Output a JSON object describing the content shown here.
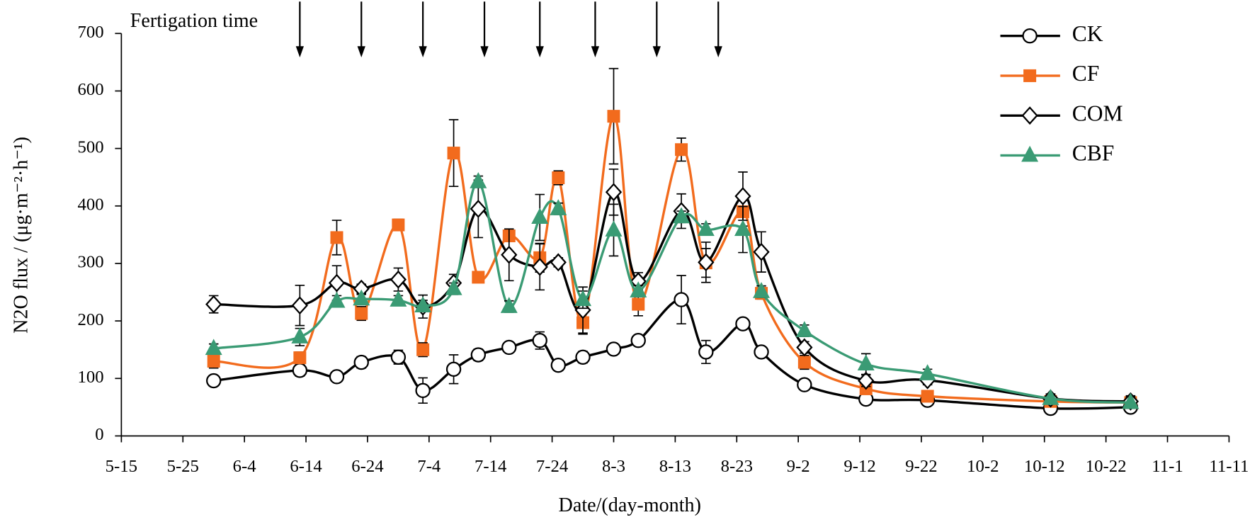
{
  "chart_data": {
    "type": "line",
    "annotation": "Fertigation time",
    "fertigation_dates": [
      "6-13",
      "6-23",
      "7-3",
      "7-13",
      "7-22",
      "7-31",
      "8-10",
      "8-20"
    ],
    "xlabel": "Date/(day-month)",
    "ylabel": "N2O flux / (μg·m⁻²·h⁻¹)",
    "x": [
      "5-30",
      "6-13",
      "6-19",
      "6-23",
      "6-29",
      "7-3",
      "7-8",
      "7-12",
      "7-17",
      "7-22",
      "7-25",
      "7-29",
      "8-3",
      "8-7",
      "8-14",
      "8-18",
      "8-24",
      "8-27",
      "9-3",
      "9-13",
      "9-23",
      "10-13",
      "10-26"
    ],
    "xlim": [
      "5-15",
      "11-11"
    ],
    "xticks": [
      "5-15",
      "5-25",
      "6-4",
      "6-14",
      "6-24",
      "7-4",
      "7-14",
      "7-24",
      "8-3",
      "8-13",
      "8-23",
      "9-2",
      "9-12",
      "9-22",
      "10-2",
      "10-12",
      "10-22",
      "11-1",
      "11-11"
    ],
    "ylim": [
      0,
      700
    ],
    "yticks": [
      0,
      100,
      200,
      300,
      400,
      500,
      600,
      700
    ],
    "legend": "upper right",
    "series": [
      {
        "name": "CK",
        "color": "#000000",
        "marker": "circle",
        "marker_fill": "#ffffff",
        "values": [
          96,
          114,
          103,
          128,
          137,
          79,
          116,
          141,
          154,
          166,
          123,
          137,
          151,
          166,
          237,
          146,
          195,
          146,
          89,
          64,
          62,
          48,
          50
        ],
        "errors": [
          8,
          10,
          5,
          10,
          12,
          22,
          25,
          10,
          8,
          15,
          8,
          10,
          8,
          8,
          42,
          20,
          8,
          5,
          5,
          5,
          8,
          5,
          8
        ]
      },
      {
        "name": "CF",
        "color": "#f26b1d",
        "marker": "square",
        "marker_fill": "#f26b1d",
        "values": [
          130,
          136,
          345,
          213,
          367,
          150,
          492,
          276,
          348,
          310,
          449,
          197,
          556,
          229,
          498,
          301,
          390,
          248,
          128,
          82,
          69,
          60,
          58
        ],
        "errors": [
          12,
          10,
          30,
          12,
          10,
          12,
          58,
          8,
          10,
          25,
          12,
          20,
          83,
          20,
          20,
          25,
          25,
          10,
          12,
          8,
          5,
          5,
          5
        ]
      },
      {
        "name": "COM",
        "color": "#000000",
        "marker": "diamond",
        "marker_fill": "#ffffff",
        "values": [
          229,
          227,
          266,
          256,
          272,
          225,
          266,
          395,
          315,
          294,
          302,
          219,
          424,
          269,
          391,
          302,
          417,
          320,
          154,
          96,
          97,
          65,
          60
        ],
        "errors": [
          15,
          35,
          30,
          8,
          20,
          20,
          15,
          50,
          45,
          40,
          8,
          40,
          40,
          15,
          30,
          35,
          42,
          35,
          10,
          10,
          8,
          8,
          10
        ]
      },
      {
        "name": "CBF",
        "color": "#3a9b74",
        "marker": "triangle",
        "marker_fill": "#3a9b74",
        "values": [
          152,
          172,
          234,
          238,
          236,
          226,
          256,
          442,
          225,
          380,
          395,
          237,
          358,
          252,
          381,
          359,
          359,
          251,
          183,
          125,
          108,
          65,
          58
        ],
        "errors": [
          8,
          15,
          10,
          8,
          8,
          10,
          10,
          10,
          10,
          40,
          10,
          15,
          45,
          10,
          10,
          10,
          40,
          10,
          10,
          18,
          8,
          8,
          10
        ]
      }
    ]
  }
}
